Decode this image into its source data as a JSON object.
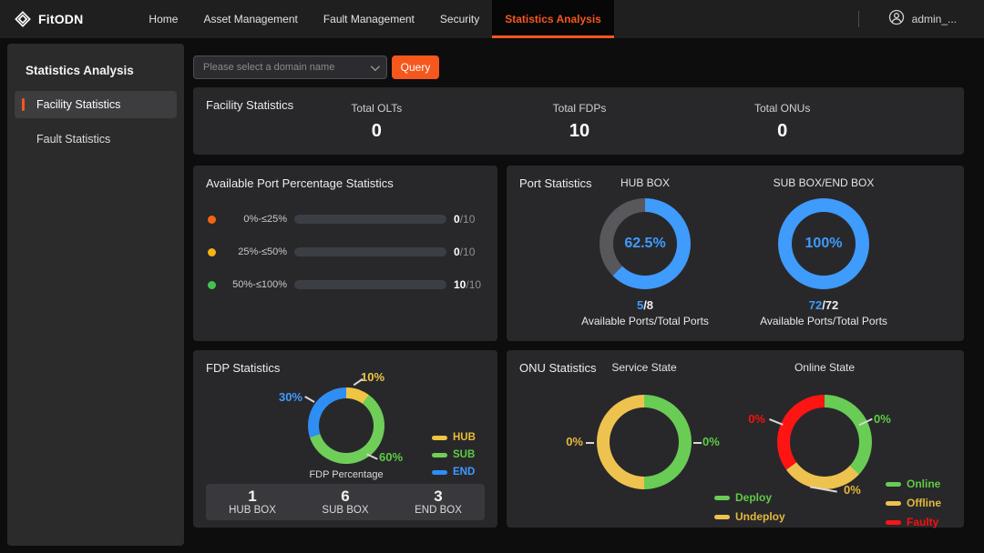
{
  "header": {
    "brand": "FitODN",
    "nav": [
      {
        "label": "Home"
      },
      {
        "label": "Asset Management"
      },
      {
        "label": "Fault Management"
      },
      {
        "label": "Security"
      },
      {
        "label": "Statistics Analysis"
      }
    ],
    "user": "admin_...",
    "accent": "#f5571d"
  },
  "sidebar": {
    "title": "Statistics Analysis",
    "items": [
      {
        "label": "Facility Statistics"
      },
      {
        "label": "Fault Statistics"
      }
    ]
  },
  "query": {
    "placeholder": "Please select a domain name",
    "button": "Query"
  },
  "facility": {
    "title": "Facility Statistics",
    "stats": [
      {
        "label": "Total OLTs",
        "value": "0"
      },
      {
        "label": "Total FDPs",
        "value": "10"
      },
      {
        "label": "Total ONUs",
        "value": "0"
      }
    ]
  },
  "cards": {
    "port_title": "Port Statistics",
    "fdp_title": "FDP Statistics",
    "onu_title": "ONU Statistics"
  },
  "chart_data": [
    {
      "type": "bar",
      "title": "Available Port Percentage Statistics",
      "categories": [
        "0%-≤25%",
        "25%-≤50%",
        "50%-≤100%"
      ],
      "values": [
        0,
        0,
        10
      ],
      "max": 10,
      "rows": [
        {
          "label": "0%-≤25%",
          "value": 0,
          "total": 10,
          "value_text": "0",
          "total_text": "/10",
          "color": "#f2660f"
        },
        {
          "label": "25%-≤50%",
          "value": 0,
          "total": 10,
          "value_text": "0",
          "total_text": "/10",
          "color": "#f5b50e"
        },
        {
          "label": "50%-≤100%",
          "value": 10,
          "total": 10,
          "value_text": "10",
          "total_text": "/10",
          "color": "#41c152"
        }
      ]
    },
    {
      "type": "donut",
      "title": "HUB BOX",
      "center_label": "62.5%",
      "segments": [
        {
          "name": "Available",
          "value": 62.5,
          "color": "#3f9bfc"
        },
        {
          "name": "Unavailable",
          "value": 37.5,
          "color": "#58585c"
        }
      ],
      "caption_value": "5",
      "caption_rest": "/8",
      "caption": "Available Ports/Total Ports"
    },
    {
      "type": "donut",
      "title": "SUB BOX/END BOX",
      "center_label": "100%",
      "segments": [
        {
          "name": "Available",
          "value": 100,
          "color": "#3f9bfc"
        },
        {
          "name": "Unavailable",
          "value": 0,
          "color": "#58585c"
        }
      ],
      "caption_value": "72",
      "caption_rest": "/72",
      "caption": "Available Ports/Total Ports"
    },
    {
      "type": "donut",
      "title": "FDP Percentage",
      "segments": [
        {
          "name": "HUB",
          "value": 10,
          "label": "10%",
          "color": "#eec643"
        },
        {
          "name": "SUB",
          "value": 60,
          "label": "60%",
          "color": "#6fce58"
        },
        {
          "name": "END",
          "value": 30,
          "label": "30%",
          "color": "#2e8ef3"
        }
      ],
      "legend": [
        {
          "label": "HUB",
          "color": "#e8bd35"
        },
        {
          "label": "SUB",
          "color": "#5ecb42"
        },
        {
          "label": "END",
          "color": "#3d9bff"
        }
      ],
      "summary": [
        {
          "value": "1",
          "label": "HUB BOX"
        },
        {
          "value": "6",
          "label": "SUB BOX"
        },
        {
          "value": "3",
          "label": "END BOX"
        }
      ]
    },
    {
      "type": "donut",
      "title": "Service State",
      "segments": [
        {
          "name": "Deploy",
          "value": 0,
          "label": "0%",
          "arc_pct": 50,
          "color": "#69cc55"
        },
        {
          "name": "Undeploy",
          "value": 0,
          "label": "0%",
          "arc_pct": 50,
          "color": "#eec24f"
        }
      ],
      "legend": [
        {
          "label": "Deploy",
          "color": "#5ecb42"
        },
        {
          "label": "Undeploy",
          "color": "#e3b83a"
        }
      ]
    },
    {
      "type": "donut",
      "title": "Online State",
      "segments": [
        {
          "name": "Online",
          "value": 0,
          "label": "0%",
          "arc_pct": 37,
          "color": "#69cc55"
        },
        {
          "name": "Offline",
          "value": 0,
          "label": "0%",
          "arc_pct": 28,
          "color": "#eec24f"
        },
        {
          "name": "Faulty",
          "value": 0,
          "label": "0%",
          "arc_pct": 35,
          "color": "#ff1414"
        }
      ],
      "legend": [
        {
          "label": "Online",
          "color": "#5ecb42"
        },
        {
          "label": "Offline",
          "color": "#e3b83a"
        },
        {
          "label": "Faulty",
          "color": "#fb0f0f"
        }
      ]
    }
  ]
}
